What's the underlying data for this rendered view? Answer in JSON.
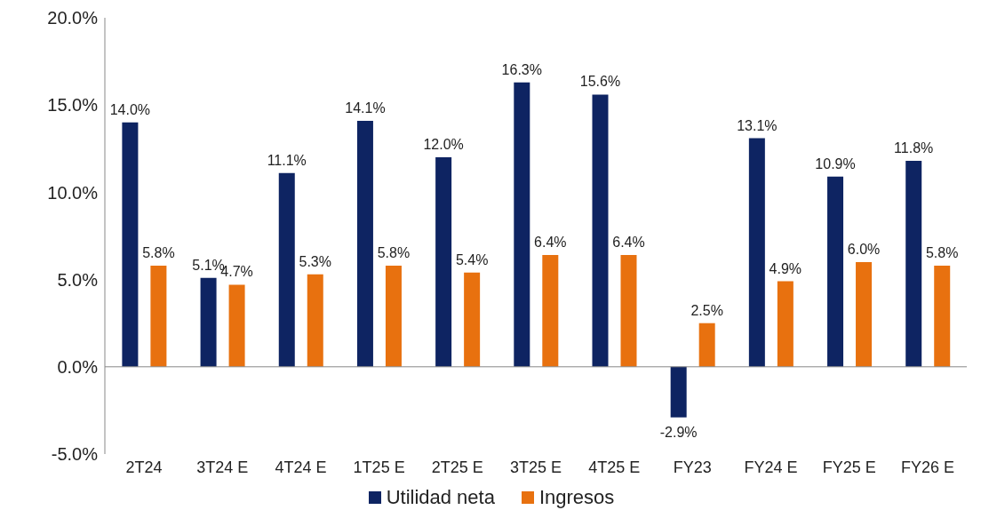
{
  "chart_data": {
    "type": "bar",
    "categories": [
      "2T24",
      "3T24 E",
      "4T24 E",
      "1T25 E",
      "2T25 E",
      "3T25 E",
      "4T25 E",
      "FY23",
      "FY24 E",
      "FY25 E",
      "FY26 E"
    ],
    "series": [
      {
        "name": "Utilidad neta",
        "color": "#0e2462",
        "values": [
          14.0,
          5.1,
          11.1,
          14.1,
          12.0,
          16.3,
          15.6,
          -2.9,
          13.1,
          10.9,
          11.8
        ],
        "value_labels": [
          "14.0%",
          "5.1%",
          "11.1%",
          "14.1%",
          "12.0%",
          "16.3%",
          "15.6%",
          "-2.9%",
          "13.1%",
          "10.9%",
          "11.8%"
        ]
      },
      {
        "name": "Ingresos",
        "color": "#e8710f",
        "values": [
          5.8,
          4.7,
          5.3,
          5.8,
          5.4,
          6.4,
          6.4,
          2.5,
          4.9,
          6.0,
          5.8
        ],
        "value_labels": [
          "5.8%",
          "4.7%",
          "5.3%",
          "5.8%",
          "5.4%",
          "6.4%",
          "6.4%",
          "2.5%",
          "4.9%",
          "6.0%",
          "5.8%"
        ]
      }
    ],
    "ylim": [
      -5,
      20
    ],
    "yticks": [
      {
        "value": -5,
        "label": "-5.0%"
      },
      {
        "value": 0,
        "label": "0.0%"
      },
      {
        "value": 5,
        "label": "5.0%"
      },
      {
        "value": 10,
        "label": "10.0%"
      },
      {
        "value": 15,
        "label": "15.0%"
      },
      {
        "value": 20,
        "label": "20.0%"
      }
    ],
    "ref_lines": [
      {
        "axis": "y",
        "value": 0,
        "color": "#888888"
      }
    ],
    "grid": false,
    "legend": "bottom"
  }
}
